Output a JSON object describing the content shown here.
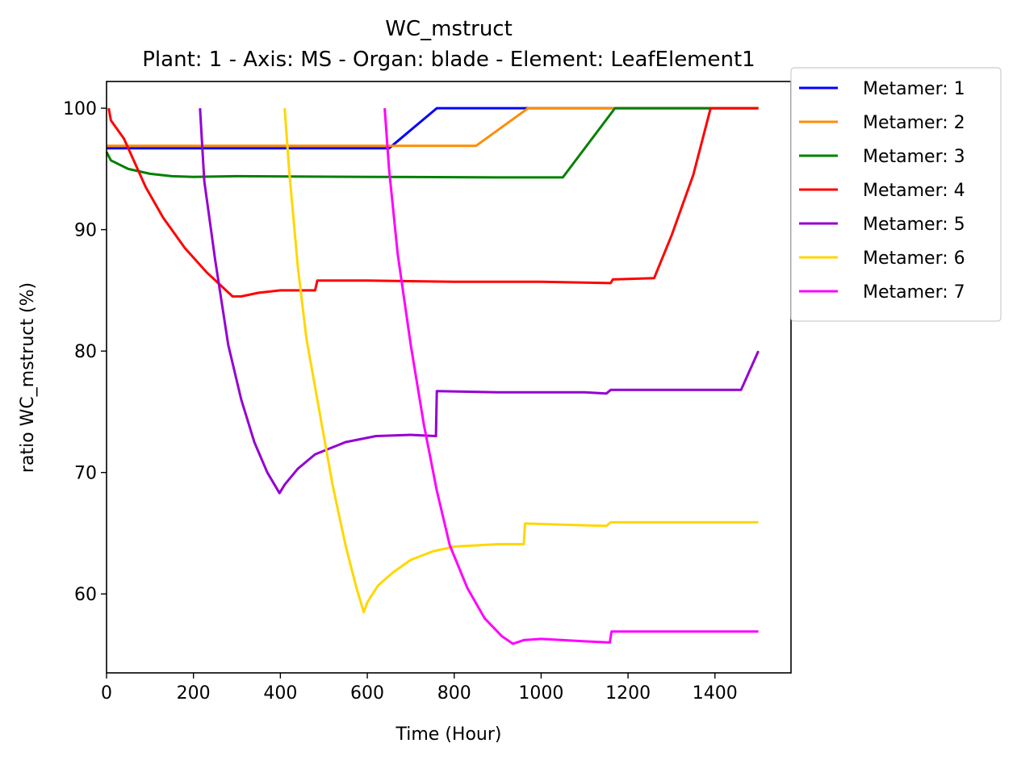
{
  "chart_data": {
    "type": "line",
    "title": "WC_mstruct",
    "subtitle": "Plant: 1 - Axis: MS - Organ: blade - Element: LeafElement1",
    "xlabel": "Time (Hour)",
    "ylabel": "ratio WC_mstruct (%)",
    "xlim": [
      0,
      1575
    ],
    "ylim": [
      53.5,
      102.2
    ],
    "xticks": [
      0,
      200,
      400,
      600,
      800,
      1000,
      1200,
      1400
    ],
    "yticks": [
      60,
      70,
      80,
      90,
      100
    ],
    "grid": false,
    "legend_position": "outside-upper-right",
    "series": [
      {
        "name": "Metamer: 1",
        "color": "#0000ff",
        "points": [
          [
            0,
            96.7
          ],
          [
            650,
            96.7
          ],
          [
            760,
            100
          ],
          [
            1500,
            100
          ]
        ]
      },
      {
        "name": "Metamer: 2",
        "color": "#ff8c00",
        "points": [
          [
            0,
            96.9
          ],
          [
            850,
            96.9
          ],
          [
            970,
            100
          ],
          [
            1500,
            100
          ]
        ]
      },
      {
        "name": "Metamer: 3",
        "color": "#008000",
        "points": [
          [
            0,
            96.4
          ],
          [
            10,
            95.7
          ],
          [
            50,
            95.0
          ],
          [
            100,
            94.6
          ],
          [
            150,
            94.4
          ],
          [
            200,
            94.35
          ],
          [
            300,
            94.4
          ],
          [
            600,
            94.35
          ],
          [
            900,
            94.3
          ],
          [
            1050,
            94.3
          ],
          [
            1170,
            100
          ],
          [
            1500,
            100
          ]
        ]
      },
      {
        "name": "Metamer: 4",
        "color": "#ff0000",
        "points": [
          [
            5,
            100
          ],
          [
            10,
            99
          ],
          [
            40,
            97.5
          ],
          [
            90,
            93.5
          ],
          [
            130,
            91
          ],
          [
            180,
            88.5
          ],
          [
            230,
            86.5
          ],
          [
            260,
            85.5
          ],
          [
            290,
            84.5
          ],
          [
            310,
            84.5
          ],
          [
            350,
            84.8
          ],
          [
            400,
            85
          ],
          [
            480,
            85
          ],
          [
            485,
            85.8
          ],
          [
            600,
            85.8
          ],
          [
            800,
            85.7
          ],
          [
            1000,
            85.7
          ],
          [
            1160,
            85.6
          ],
          [
            1165,
            85.9
          ],
          [
            1260,
            86
          ],
          [
            1300,
            89.5
          ],
          [
            1350,
            94.5
          ],
          [
            1390,
            100
          ],
          [
            1500,
            100
          ]
        ]
      },
      {
        "name": "Metamer: 5",
        "color": "#9400d3",
        "points": [
          [
            215,
            100
          ],
          [
            225,
            94
          ],
          [
            250,
            87.5
          ],
          [
            280,
            80.5
          ],
          [
            310,
            76
          ],
          [
            340,
            72.5
          ],
          [
            370,
            70
          ],
          [
            398,
            68.3
          ],
          [
            410,
            69
          ],
          [
            440,
            70.3
          ],
          [
            480,
            71.5
          ],
          [
            550,
            72.5
          ],
          [
            620,
            73
          ],
          [
            700,
            73.1
          ],
          [
            758,
            73.0
          ],
          [
            760,
            76.7
          ],
          [
            900,
            76.6
          ],
          [
            1100,
            76.6
          ],
          [
            1150,
            76.5
          ],
          [
            1160,
            76.8
          ],
          [
            1460,
            76.8
          ],
          [
            1500,
            80
          ]
        ]
      },
      {
        "name": "Metamer: 6",
        "color": "#ffd700",
        "points": [
          [
            410,
            100
          ],
          [
            420,
            95
          ],
          [
            440,
            87
          ],
          [
            460,
            81
          ],
          [
            490,
            75
          ],
          [
            520,
            69
          ],
          [
            550,
            64
          ],
          [
            575,
            60.5
          ],
          [
            592,
            58.5
          ],
          [
            600,
            59.3
          ],
          [
            625,
            60.7
          ],
          [
            660,
            61.8
          ],
          [
            700,
            62.8
          ],
          [
            750,
            63.5
          ],
          [
            800,
            63.9
          ],
          [
            900,
            64.1
          ],
          [
            960,
            64.1
          ],
          [
            963,
            65.8
          ],
          [
            1150,
            65.6
          ],
          [
            1160,
            65.9
          ],
          [
            1500,
            65.9
          ]
        ]
      },
      {
        "name": "Metamer: 7",
        "color": "#ff00ff",
        "points": [
          [
            640,
            100
          ],
          [
            650,
            95
          ],
          [
            670,
            88
          ],
          [
            700,
            80.5
          ],
          [
            730,
            74
          ],
          [
            760,
            68.5
          ],
          [
            790,
            64
          ],
          [
            830,
            60.5
          ],
          [
            870,
            58
          ],
          [
            910,
            56.5
          ],
          [
            935,
            55.9
          ],
          [
            960,
            56.2
          ],
          [
            1000,
            56.3
          ],
          [
            1100,
            56.1
          ],
          [
            1158,
            56
          ],
          [
            1162,
            56.9
          ],
          [
            1500,
            56.9
          ]
        ]
      }
    ]
  }
}
